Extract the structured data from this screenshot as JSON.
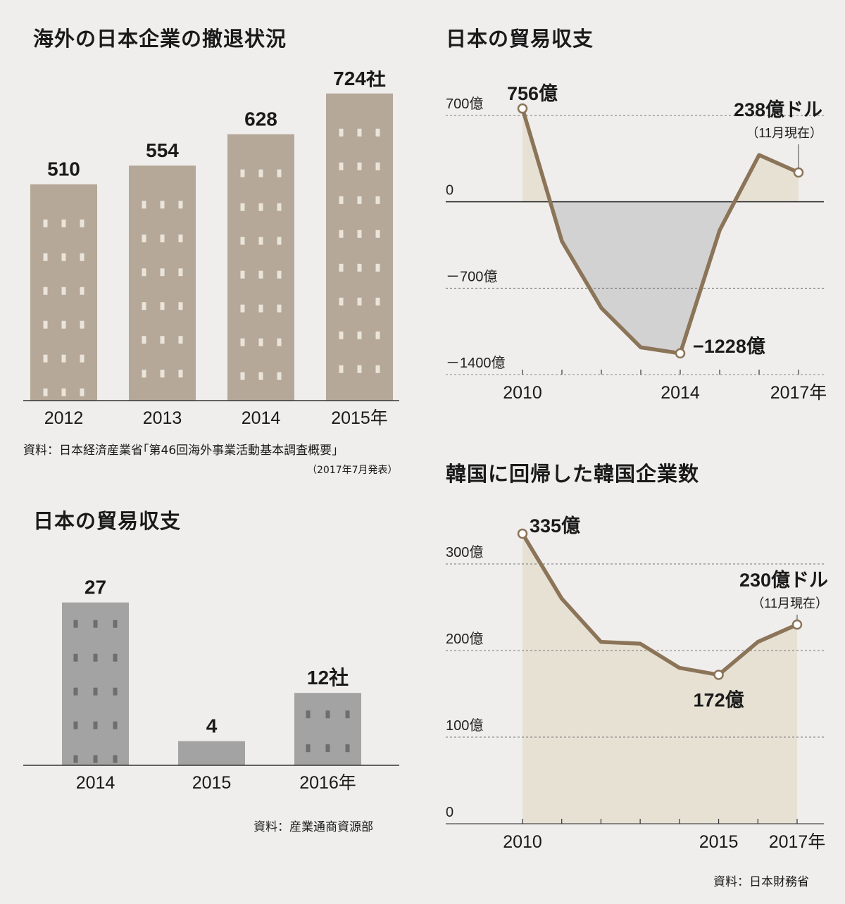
{
  "panels": {
    "tl": {
      "title": "海外の日本企業の撤退状況",
      "source": "資料：日本経済産業省｢第46回海外事業活動基本調査概要｣",
      "source_note": "（2017年7月発表）"
    },
    "bl": {
      "title": "日本の貿易収支",
      "source": "資料：産業通商資源部"
    },
    "tr": {
      "title": "日本の貿易収支"
    },
    "br": {
      "title": "韓国に回帰した韓国企業数",
      "source": "資料：日本財務省"
    }
  },
  "colors": {
    "bar_brown": "#b5a898",
    "bar_gray": "#a3a3a3",
    "line": "#8b7458",
    "fill_pos": "#e7e1d4",
    "fill_neg": "#d2d2d2",
    "window": "#eae4da",
    "window_gray": "#6e6e6e"
  },
  "chart_data": [
    {
      "type": "bar",
      "categories": [
        "2012",
        "2013",
        "2014",
        "2015年"
      ],
      "values": [
        510,
        554,
        628,
        724
      ],
      "value_labels": [
        "510",
        "554",
        "628",
        "724社"
      ],
      "ylim": [
        0,
        800
      ]
    },
    {
      "type": "bar",
      "categories": [
        "2014",
        "2015",
        "2016年"
      ],
      "values": [
        27,
        4,
        12
      ],
      "value_labels": [
        "27",
        "4",
        "12社"
      ],
      "ylim": [
        0,
        30
      ]
    },
    {
      "type": "area",
      "x": [
        2010,
        2011,
        2012,
        2013,
        2014,
        2015,
        2016,
        2017
      ],
      "values": [
        756,
        -320,
        -860,
        -1180,
        -1228,
        -230,
        380,
        238
      ],
      "x_tick_labels": [
        {
          "x": 2010,
          "label": "2010"
        },
        {
          "x": 2014,
          "label": "2014"
        },
        {
          "x": 2017,
          "label": "2017年"
        }
      ],
      "y_ticks": [
        {
          "v": 700,
          "label": "700億"
        },
        {
          "v": 0,
          "label": "0"
        },
        {
          "v": -700,
          "label": "－700億"
        },
        {
          "v": -1400,
          "label": "－1400億"
        }
      ],
      "annotations": [
        {
          "x": 2010,
          "label": "756億"
        },
        {
          "x": 2014,
          "label": "−1228億"
        },
        {
          "x": 2017,
          "label": "238億ドル",
          "sublabel": "（11月現在）"
        }
      ],
      "ylim": [
        -1400,
        700
      ]
    },
    {
      "type": "area",
      "x": [
        2010,
        2011,
        2012,
        2013,
        2014,
        2015,
        2016,
        2017
      ],
      "values": [
        335,
        260,
        210,
        208,
        180,
        172,
        210,
        230
      ],
      "x_tick_labels": [
        {
          "x": 2010,
          "label": "2010"
        },
        {
          "x": 2015,
          "label": "2015"
        },
        {
          "x": 2017,
          "label": "2017年"
        }
      ],
      "y_ticks": [
        {
          "v": 300,
          "label": "300億"
        },
        {
          "v": 200,
          "label": "200億"
        },
        {
          "v": 100,
          "label": "100億"
        },
        {
          "v": 0,
          "label": "0"
        }
      ],
      "annotations": [
        {
          "x": 2010,
          "label": "335億"
        },
        {
          "x": 2015,
          "label": "172億"
        },
        {
          "x": 2017,
          "label": "230億ドル",
          "sublabel": "（11月現在）"
        }
      ],
      "ylim": [
        0,
        335
      ]
    }
  ]
}
